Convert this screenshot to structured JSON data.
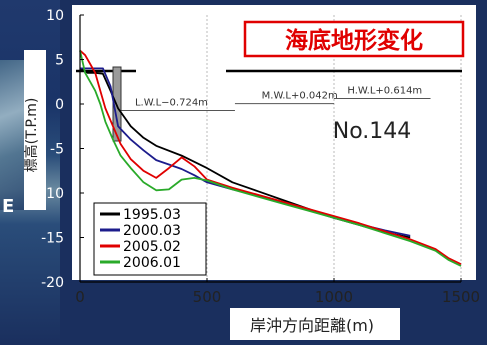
{
  "slide": {
    "side_glyph": "E"
  },
  "chart_data": {
    "type": "line",
    "title": "海底地形変化",
    "subtitle": "No.144",
    "xlabel": "岸沖方向距離(m)",
    "ylabel": "標高(T.P.m)",
    "xlim": [
      0,
      1500
    ],
    "ylim": [
      -20,
      10
    ],
    "xticks": [
      0,
      500,
      1000,
      1500
    ],
    "yticks": [
      10,
      5,
      0,
      -5,
      -10,
      -15,
      -20
    ],
    "grid": "vertical-only",
    "legend_position": "bottom-left",
    "annotations": [
      {
        "label": "L.W.L−0.724m",
        "value": -0.724
      },
      {
        "label": "M.W.L+0.042m",
        "value": 0.042
      },
      {
        "label": "H.W.L+0.614m",
        "value": 0.614
      }
    ],
    "series": [
      {
        "name": "1995.03",
        "color": "#000000",
        "x": [
          0,
          30,
          60,
          90,
          120,
          150,
          200,
          250,
          300,
          400,
          500,
          600,
          700,
          800,
          900,
          1000,
          1100,
          1200,
          1300
        ],
        "y": [
          4,
          3.5,
          3.5,
          3.4,
          1.5,
          -0.5,
          -2.5,
          -3.8,
          -4.7,
          -5.8,
          -7.2,
          -8.8,
          -9.8,
          -10.8,
          -11.8,
          -12.8,
          -13.6,
          -14.4,
          -15.0
        ]
      },
      {
        "name": "2000.03",
        "color": "#1c1c8c",
        "x": [
          0,
          30,
          60,
          90,
          120,
          150,
          200,
          250,
          300,
          350,
          400,
          450,
          500,
          600,
          700,
          800,
          900,
          1000,
          1100,
          1200,
          1300
        ],
        "y": [
          4,
          4,
          4,
          4,
          2,
          -2.5,
          -4,
          -5.2,
          -6.3,
          -6.8,
          -7.3,
          -8.0,
          -8.8,
          -9.6,
          -10.3,
          -11.1,
          -11.9,
          -12.8,
          -13.5,
          -14.2,
          -14.8
        ]
      },
      {
        "name": "2005.02",
        "color": "#e00000",
        "x": [
          0,
          20,
          40,
          60,
          80,
          100,
          130,
          160,
          200,
          250,
          300,
          350,
          400,
          450,
          500,
          600,
          700,
          800,
          900,
          1000,
          1100,
          1200,
          1300,
          1400,
          1450,
          1500
        ],
        "y": [
          6,
          5.5,
          4.5,
          3.5,
          1.5,
          -0.5,
          -2.5,
          -4.5,
          -6.2,
          -7.5,
          -8.3,
          -7.2,
          -6.0,
          -7.0,
          -8.5,
          -9.4,
          -10.2,
          -11.0,
          -11.8,
          -12.6,
          -13.4,
          -14.3,
          -15.2,
          -16.3,
          -17.3,
          -18.0
        ]
      },
      {
        "name": "2006.01",
        "color": "#2aaa2a",
        "x": [
          0,
          20,
          40,
          60,
          80,
          100,
          130,
          160,
          200,
          250,
          300,
          350,
          400,
          450,
          500,
          600,
          700,
          800,
          900,
          1000,
          1100,
          1200,
          1300,
          1400,
          1450,
          1500
        ],
        "y": [
          6,
          3.5,
          2.5,
          1.5,
          0,
          -2,
          -4,
          -5.8,
          -7.2,
          -8.8,
          -9.7,
          -9.6,
          -8.5,
          -8.3,
          -8.6,
          -9.6,
          -10.4,
          -11.2,
          -12.0,
          -12.8,
          -13.6,
          -14.5,
          -15.4,
          -16.5,
          -17.5,
          -18.2
        ]
      }
    ]
  }
}
